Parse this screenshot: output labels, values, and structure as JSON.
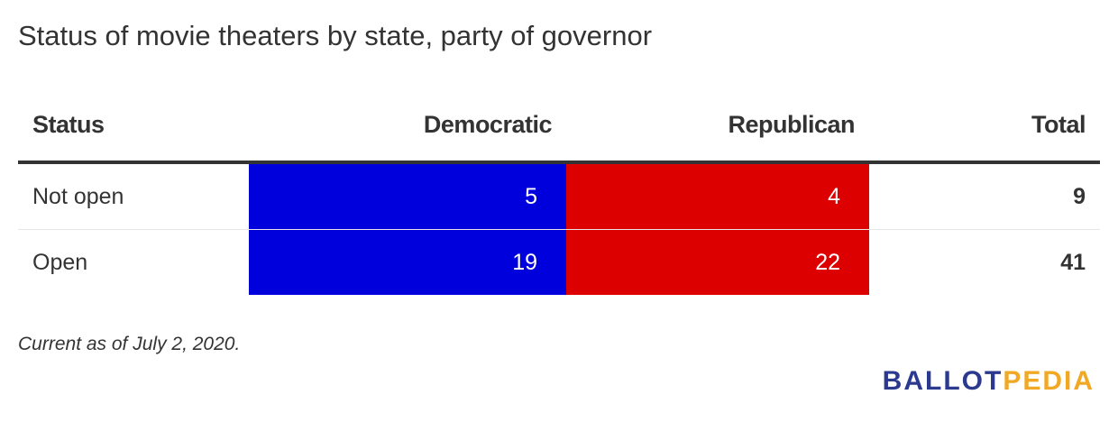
{
  "chart_data": {
    "type": "table",
    "title": "Status of movie theaters by state, party of governor",
    "columns": [
      "Status",
      "Democratic",
      "Republican",
      "Total"
    ],
    "rows": [
      {
        "status": "Not open",
        "democratic": "5",
        "republican": "4",
        "total": "9"
      },
      {
        "status": "Open",
        "democratic": "19",
        "republican": "22",
        "total": "41"
      }
    ],
    "colors": {
      "democratic": "#0000dd",
      "republican": "#dd0000"
    },
    "note": "Current as of July 2, 2020."
  },
  "logo": {
    "part_a": "BALLOT",
    "part_b": "PEDIA"
  }
}
